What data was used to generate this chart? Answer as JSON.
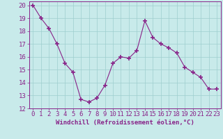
{
  "x": [
    0,
    1,
    2,
    3,
    4,
    5,
    6,
    7,
    8,
    9,
    10,
    11,
    12,
    13,
    14,
    15,
    16,
    17,
    18,
    19,
    20,
    21,
    22,
    23
  ],
  "y": [
    20,
    19,
    18.2,
    17,
    15.5,
    14.8,
    12.7,
    12.5,
    12.8,
    13.8,
    15.5,
    16.0,
    15.9,
    16.5,
    18.8,
    17.5,
    17.0,
    16.7,
    16.3,
    15.2,
    14.8,
    14.4,
    13.5,
    13.5
  ],
  "line_color": "#882288",
  "marker": "+",
  "bg_color": "#c8eaea",
  "grid_color": "#9ecece",
  "xlabel": "Windchill (Refroidissement éolien,°C)",
  "xlim": [
    -0.5,
    23.5
  ],
  "ylim": [
    12,
    20.3
  ],
  "yticks": [
    12,
    13,
    14,
    15,
    16,
    17,
    18,
    19,
    20
  ],
  "xticks": [
    0,
    1,
    2,
    3,
    4,
    5,
    6,
    7,
    8,
    9,
    10,
    11,
    12,
    13,
    14,
    15,
    16,
    17,
    18,
    19,
    20,
    21,
    22,
    23
  ],
  "tick_color": "#882288",
  "label_color": "#882288",
  "font_size": 6.5
}
